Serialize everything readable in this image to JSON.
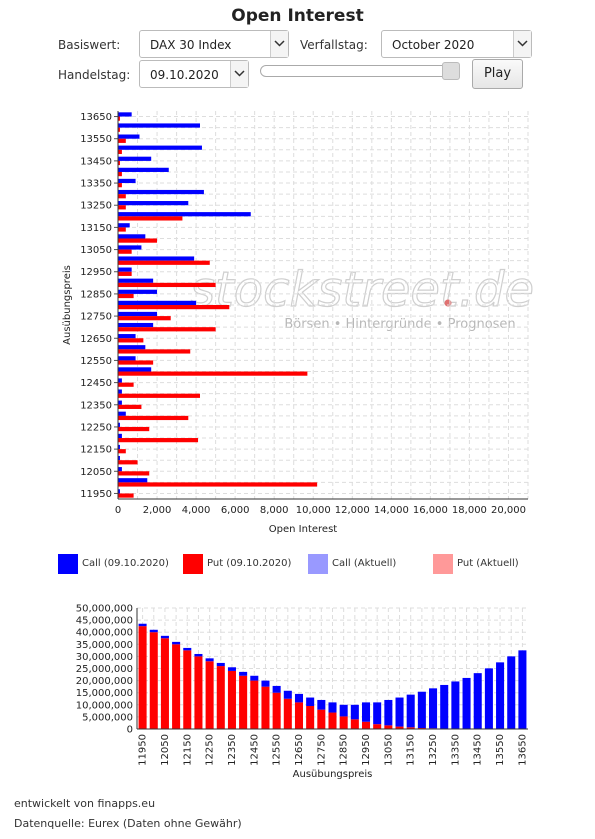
{
  "header": {
    "title": "Open Interest"
  },
  "controls": {
    "basiswert_label": "Basiswert:",
    "basiswert_value": "DAX 30 Index",
    "verfallstag_label": "Verfallstag:",
    "verfallstag_value": "October 2020",
    "handelstag_label": "Handelstag:",
    "handelstag_value": "09.10.2020",
    "play_label": "Play",
    "slider_position": 1.0
  },
  "watermark": {
    "logo_text": "stockstreet.de",
    "tagline": "Börsen • Hintergründe • Prognosen"
  },
  "colors": {
    "call": "#0000ff",
    "put": "#ff0000",
    "call_current": "#9999ff",
    "put_current": "#ff9999",
    "grid": "#dddddd"
  },
  "legend": [
    {
      "label": "Call (09.10.2020)",
      "color": "#0000ff"
    },
    {
      "label": "Put (09.10.2020)",
      "color": "#ff0000"
    },
    {
      "label": "Call (Aktuell)",
      "color": "#9999ff"
    },
    {
      "label": "Put (Aktuell)",
      "color": "#ff9999"
    }
  ],
  "footer": {
    "line1": "entwickelt von finapps.eu",
    "line2": "Datenquelle: Eurex (Daten ohne Gewähr)"
  },
  "chart_data": [
    {
      "type": "bar",
      "orientation": "horizontal",
      "xlabel": "Open Interest",
      "ylabel": "Ausübungspreis",
      "xlim": [
        0,
        21000
      ],
      "xticks": [
        "0",
        "2,000",
        "4,000",
        "6,000",
        "8,000",
        "10,000",
        "12,000",
        "14,000",
        "16,000",
        "18,000",
        "20,000"
      ],
      "yticks": [
        "13650",
        "13550",
        "13450",
        "13350",
        "13250",
        "13150",
        "13050",
        "12950",
        "12850",
        "12750",
        "12650",
        "12550",
        "12450",
        "12350",
        "12250",
        "12150",
        "12050",
        "11950"
      ],
      "grid": true,
      "strikes": [
        13650,
        13600,
        13550,
        13500,
        13450,
        13400,
        13350,
        13300,
        13250,
        13200,
        13150,
        13100,
        13050,
        13000,
        12950,
        12900,
        12850,
        12800,
        12750,
        12700,
        12650,
        12600,
        12550,
        12500,
        12450,
        12400,
        12350,
        12300,
        12250,
        12200,
        12150,
        12100,
        12050,
        12000,
        11950
      ],
      "series": [
        {
          "name": "Call (09.10.2020)",
          "values": [
            700,
            4200,
            1100,
            4300,
            1700,
            2600,
            900,
            4400,
            3600,
            6800,
            600,
            1400,
            1200,
            3900,
            700,
            1800,
            2000,
            4000,
            2000,
            1800,
            900,
            1400,
            900,
            1700,
            200,
            200,
            200,
            400,
            100,
            200,
            100,
            100,
            200,
            1500,
            100
          ]
        },
        {
          "name": "Put (09.10.2020)",
          "values": [
            100,
            100,
            400,
            200,
            100,
            200,
            200,
            400,
            400,
            3300,
            400,
            2000,
            700,
            4700,
            700,
            5000,
            800,
            5700,
            2700,
            5000,
            1300,
            3700,
            1800,
            9700,
            800,
            4200,
            1200,
            3600,
            1600,
            4100,
            400,
            1000,
            1600,
            10200,
            800
          ]
        }
      ]
    },
    {
      "type": "bar",
      "stacked": true,
      "xlabel": "Ausübungspreis",
      "ylabel": "",
      "ylim": [
        0,
        50000000
      ],
      "yticks": [
        "0",
        "5,000,000",
        "10,000,000",
        "15,000,000",
        "20,000,000",
        "25,000,000",
        "30,000,000",
        "35,000,000",
        "40,000,000",
        "45,000,000",
        "50,000,000"
      ],
      "xticks": [
        "11950",
        "12050",
        "12150",
        "12250",
        "12350",
        "12450",
        "12550",
        "12650",
        "12750",
        "12850",
        "12950",
        "13050",
        "13150",
        "13250",
        "13350",
        "13450",
        "13550",
        "13650"
      ],
      "grid": true,
      "categories": [
        11950,
        12000,
        12050,
        12100,
        12150,
        12200,
        12250,
        12300,
        12350,
        12400,
        12450,
        12500,
        12550,
        12600,
        12650,
        12700,
        12750,
        12800,
        12850,
        12900,
        12950,
        13000,
        13050,
        13100,
        13150,
        13200,
        13250,
        13300,
        13350,
        13400,
        13450,
        13500,
        13550,
        13600,
        13650
      ],
      "series": [
        {
          "name": "Put (09.10.2020)",
          "values": [
            42500000,
            40000000,
            37500000,
            35000000,
            32500000,
            30000000,
            28000000,
            26000000,
            24000000,
            22000000,
            20000000,
            17500000,
            15000000,
            12500000,
            11000000,
            9500000,
            8000000,
            6800000,
            5200000,
            4000000,
            3000000,
            2000000,
            1500000,
            1000000,
            700000,
            400000,
            300000,
            200000,
            150000,
            100000,
            80000,
            60000,
            40000,
            20000,
            0
          ]
        },
        {
          "name": "Call (09.10.2020)",
          "values": [
            1000000,
            1000000,
            1000000,
            1000000,
            1000000,
            1000000,
            1200000,
            1300000,
            1500000,
            1600000,
            2000000,
            2500000,
            2800000,
            3300000,
            3500000,
            3500000,
            4000000,
            4200000,
            4800000,
            6000000,
            8000000,
            9000000,
            10500000,
            12000000,
            13500000,
            15000000,
            16500000,
            18000000,
            19500000,
            21000000,
            23000000,
            25000000,
            27500000,
            30000000,
            32500000
          ]
        }
      ]
    }
  ]
}
